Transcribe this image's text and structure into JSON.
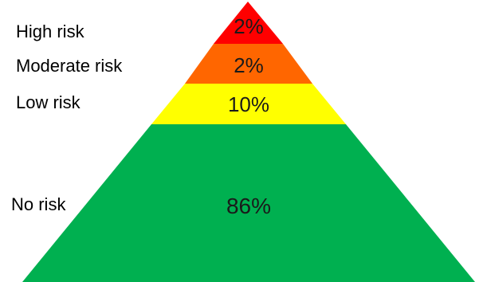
{
  "diagram": {
    "type": "risk-pyramid",
    "tiers": [
      {
        "key": "high",
        "label": "High risk",
        "percent": "2%",
        "color": "#ff0000"
      },
      {
        "key": "moderate",
        "label": "Moderate risk",
        "percent": "2%",
        "color": "#ff6600"
      },
      {
        "key": "low",
        "label": "Low risk",
        "percent": "10%",
        "color": "#ffff00"
      },
      {
        "key": "none",
        "label": "No risk",
        "percent": "86%",
        "color": "#00b050"
      }
    ]
  }
}
